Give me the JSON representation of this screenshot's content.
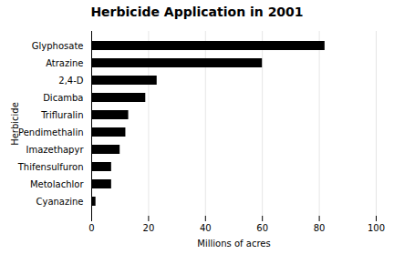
{
  "chart_data": {
    "type": "bar",
    "orientation": "horizontal",
    "title": "Herbicide Application in 2001",
    "categories": [
      "Cyanazine",
      "Metolachlor",
      "Thifensulfuron",
      "Imazethapyr",
      "Pendimethalin",
      "Trifluralin",
      "Dicamba",
      "2,4-D",
      "Atrazine",
      "Glyphosate"
    ],
    "values": [
      1.5,
      7,
      7,
      10,
      12,
      13,
      19,
      23,
      60,
      82
    ],
    "color": "#000000",
    "xlabel": "Millions of acres",
    "ylabel": "Herbicide",
    "xlim": [
      0,
      100
    ],
    "xticks": [
      0,
      20,
      40,
      60,
      80,
      100
    ],
    "grid": true
  }
}
